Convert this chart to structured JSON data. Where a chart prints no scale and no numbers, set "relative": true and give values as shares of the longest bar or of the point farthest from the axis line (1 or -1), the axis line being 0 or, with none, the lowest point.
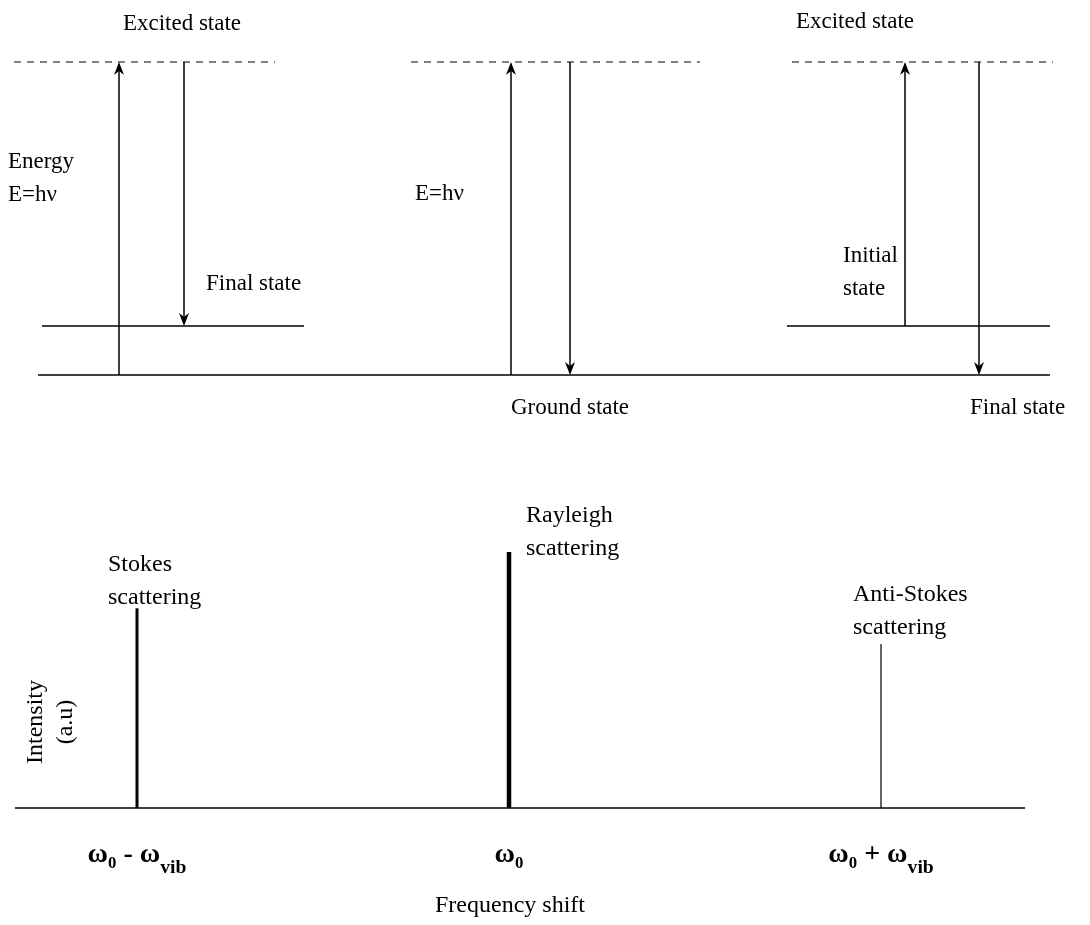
{
  "chart_data": [
    {
      "type": "other",
      "annotations": [
        "Excited state",
        "Energy E=hν",
        "Final state",
        "E=hν",
        "Ground state",
        "Excited state",
        "Initial state",
        "Final state"
      ]
    },
    {
      "type": "bar",
      "relative": true,
      "categories": [
        "ω₀ - ω$_{vib}$",
        "ω₀",
        "ω₀ + ω$_{vib}$"
      ],
      "values": [
        0.78,
        1,
        0.64
      ],
      "color": "#000000",
      "xlabel": "Frequency shift",
      "ylabel": "Intensity (a.u)",
      "annotations": [
        "Stokes scattering",
        "Rayleigh scattering",
        "Anti-Stokes scattering"
      ]
    }
  ]
}
